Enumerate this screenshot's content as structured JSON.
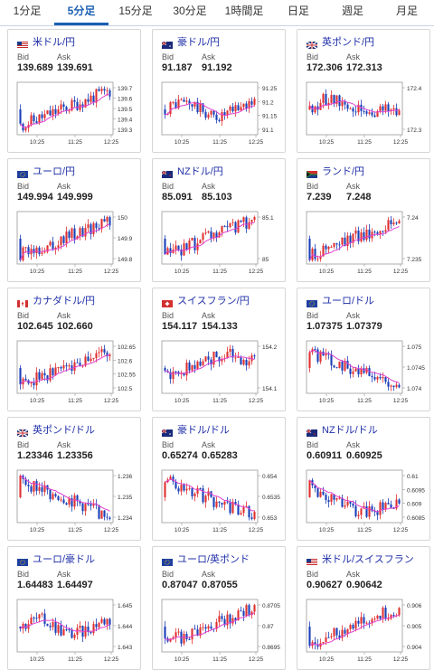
{
  "tabs": [
    {
      "label": "1分足",
      "active": false
    },
    {
      "label": "5分足",
      "active": true
    },
    {
      "label": "15分足",
      "active": false
    },
    {
      "label": "30分足",
      "active": false
    },
    {
      "label": "1時間足",
      "active": false
    },
    {
      "label": "日足",
      "active": false
    },
    {
      "label": "週足",
      "active": false
    },
    {
      "label": "月足",
      "active": false
    }
  ],
  "labels": {
    "bid": "Bid",
    "ask": "Ask"
  },
  "colors": {
    "up": "#e03030",
    "down": "#1a3fb8",
    "ma": "#e040d0",
    "name": "#1f2fa8"
  },
  "cards": [
    {
      "name": "米ドル/円",
      "flag": "us-flag",
      "bid": "139.689",
      "ask": "139.691",
      "xticks": [
        "10:25",
        "11:25",
        "12:25"
      ],
      "yticks": [
        "139.7",
        "139.6",
        "139.5",
        "139.4",
        "139.3"
      ],
      "ymin": 139.3,
      "ymax": 139.72,
      "trend": "up"
    },
    {
      "name": "豪ドル/円",
      "flag": "au-flag",
      "bid": "91.187",
      "ask": "91.192",
      "xticks": [
        "10:25",
        "11:25",
        "12:25"
      ],
      "yticks": [
        "91.25",
        "91.2",
        "91.15",
        "91.1"
      ],
      "ymin": 91.08,
      "ymax": 91.26,
      "trend": "flat"
    },
    {
      "name": "英ポンド/円",
      "flag": "gb-flag",
      "bid": "172.306",
      "ask": "172.313",
      "xticks": [
        "10:25",
        "11:25",
        "12:25"
      ],
      "yticks": [
        "172.4",
        "172.3"
      ],
      "ymin": 172.25,
      "ymax": 172.45,
      "trend": "flatdown"
    },
    {
      "name": "ユーロ/円",
      "flag": "eu-flag",
      "bid": "149.994",
      "ask": "149.999",
      "xticks": [
        "10:25",
        "11:25",
        "12:25"
      ],
      "yticks": [
        "150",
        "149.9",
        "149.8"
      ],
      "ymin": 149.78,
      "ymax": 150.03,
      "trend": "up"
    },
    {
      "name": "NZドル/円",
      "flag": "nz-flag",
      "bid": "85.091",
      "ask": "85.103",
      "xticks": [
        "10:25",
        "11:25",
        "12:25"
      ],
      "yticks": [
        "85.1",
        "85"
      ],
      "ymin": 84.95,
      "ymax": 85.14,
      "trend": "up"
    },
    {
      "name": "ランド/円",
      "flag": "za-flag",
      "bid": "7.239",
      "ask": "7.248",
      "xticks": [
        "10:25",
        "11:25",
        "12:25"
      ],
      "yticks": [
        "7.24",
        "7.235"
      ],
      "ymin": 7.232,
      "ymax": 7.247,
      "trend": "up"
    },
    {
      "name": "カナダドル/円",
      "flag": "ca-flag",
      "bid": "102.645",
      "ask": "102.660",
      "xticks": [
        "10:25",
        "11:25",
        "12:25"
      ],
      "yticks": [
        "102.65",
        "102.6",
        "102.55",
        "102.5"
      ],
      "ymin": 102.48,
      "ymax": 102.67,
      "trend": "up"
    },
    {
      "name": "スイスフラン/円",
      "flag": "ch-flag",
      "bid": "154.117",
      "ask": "154.133",
      "xticks": [
        "10:25",
        "11:25",
        "12:25"
      ],
      "yticks": [
        "154.2",
        "154.1"
      ],
      "ymin": 154.05,
      "ymax": 154.25,
      "trend": "upflat"
    },
    {
      "name": "ユーロ/ドル",
      "flag": "eu-flag",
      "bid": "1.07375",
      "ask": "1.07379",
      "xticks": [
        "10:25",
        "11:25",
        "12:25"
      ],
      "yticks": [
        "1.075",
        "1.0745",
        "1.074"
      ],
      "ymin": 1.0736,
      "ymax": 1.0753,
      "trend": "down"
    },
    {
      "name": "英ポンド/ドル",
      "flag": "gb-flag",
      "bid": "1.23346",
      "ask": "1.23356",
      "xticks": [
        "10:25",
        "11:25",
        "12:25"
      ],
      "yticks": [
        "1.236",
        "1.235",
        "1.234"
      ],
      "ymin": 1.2332,
      "ymax": 1.2365,
      "trend": "down"
    },
    {
      "name": "豪ドル/ドル",
      "flag": "au-flag",
      "bid": "0.65274",
      "ask": "0.65283",
      "xticks": [
        "10:25",
        "11:25",
        "12:25"
      ],
      "yticks": [
        "0.654",
        "0.6535",
        "0.653"
      ],
      "ymin": 0.6526,
      "ymax": 0.6544,
      "trend": "down"
    },
    {
      "name": "NZドル/ドル",
      "flag": "nz-flag",
      "bid": "0.60911",
      "ask": "0.60925",
      "xticks": [
        "10:25",
        "11:25",
        "12:25"
      ],
      "yticks": [
        "0.61",
        "0.6095",
        "0.609",
        "0.6085"
      ],
      "ymin": 0.6083,
      "ymax": 0.6103,
      "trend": "downup"
    },
    {
      "name": "ユーロ/豪ドル",
      "flag": "eu-flag",
      "bid": "1.64483",
      "ask": "1.64497",
      "xticks": [
        "10:25",
        "11:25",
        "12:25"
      ],
      "yticks": [
        "1.645",
        "1.644",
        "1.643"
      ],
      "ymin": 1.6428,
      "ymax": 1.6458,
      "trend": "flat"
    },
    {
      "name": "ユーロ/英ポンド",
      "flag": "eu-flag",
      "bid": "0.87047",
      "ask": "0.87055",
      "xticks": [
        "10:25",
        "11:25",
        "12:25"
      ],
      "yticks": [
        "0.8705",
        "0.87",
        "0.8695"
      ],
      "ymin": 0.8693,
      "ymax": 0.8706,
      "trend": "up"
    },
    {
      "name": "米ドル/スイスフラン",
      "flag": "us-flag",
      "bid": "0.90627",
      "ask": "0.90642",
      "xticks": [
        "10:25",
        "11:25",
        "12:25"
      ],
      "yticks": [
        "0.906",
        "0.905",
        "0.904"
      ],
      "ymin": 0.9036,
      "ymax": 0.9064,
      "trend": "up"
    }
  ]
}
